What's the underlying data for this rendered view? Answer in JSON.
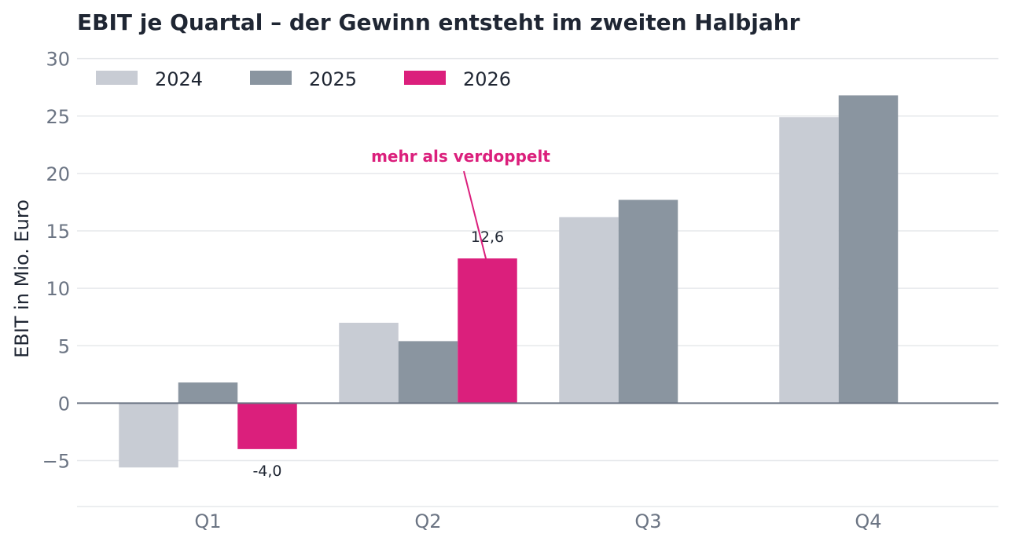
{
  "chart_data": {
    "type": "bar",
    "title": "EBIT je Quartal – der Gewinn entsteht im zweiten Halbjahr",
    "ylabel": "EBIT in Mio. Euro",
    "xlabel": "",
    "categories": [
      "Q1",
      "Q2",
      "Q3",
      "Q4"
    ],
    "ylim": [
      -9,
      31
    ],
    "yticks": [
      {
        "value": -5,
        "label": "−5"
      },
      {
        "value": 0,
        "label": "0"
      },
      {
        "value": 5,
        "label": "5"
      },
      {
        "value": 10,
        "label": "10"
      },
      {
        "value": 15,
        "label": "15"
      },
      {
        "value": 20,
        "label": "20"
      },
      {
        "value": 25,
        "label": "25"
      },
      {
        "value": 30,
        "label": "30"
      }
    ],
    "grid": true,
    "legend_position": "top-left",
    "series": [
      {
        "name": "2024",
        "color": "#c8ccd4",
        "values": [
          -5.6,
          7.0,
          16.2,
          24.9
        ]
      },
      {
        "name": "2025",
        "color": "#8a95a0",
        "values": [
          1.8,
          5.4,
          17.7,
          26.8
        ]
      },
      {
        "name": "2026",
        "color": "#db1f7c",
        "values": [
          -4.0,
          12.6,
          null,
          null
        ]
      }
    ],
    "data_labels": [
      {
        "series": 2,
        "category": 0,
        "text": "-4,0"
      },
      {
        "series": 2,
        "category": 1,
        "text": "12,6"
      }
    ],
    "annotation": {
      "text": "mehr als verdoppelt",
      "series": 2,
      "category": 1,
      "color": "#db1f7c"
    }
  }
}
